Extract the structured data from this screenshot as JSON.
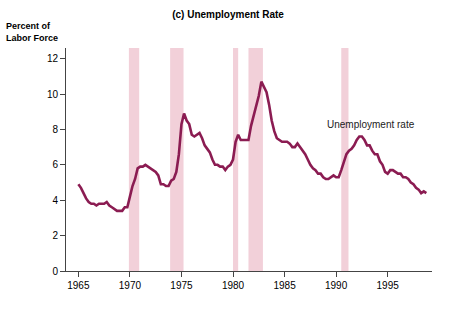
{
  "chart_data": {
    "type": "line",
    "title": "(c) Unemployment Rate",
    "y_label": "Percent of Labor Force",
    "x": [
      1965.0,
      1965.25,
      1965.5,
      1965.75,
      1966.0,
      1966.25,
      1966.5,
      1966.75,
      1967.0,
      1967.25,
      1967.5,
      1967.75,
      1968.0,
      1968.25,
      1968.5,
      1968.75,
      1969.0,
      1969.25,
      1969.5,
      1969.75,
      1970.0,
      1970.25,
      1970.5,
      1970.75,
      1971.0,
      1971.25,
      1971.5,
      1971.75,
      1972.0,
      1972.25,
      1972.5,
      1972.75,
      1973.0,
      1973.25,
      1973.5,
      1973.75,
      1974.0,
      1974.25,
      1974.5,
      1974.75,
      1975.0,
      1975.25,
      1975.5,
      1975.75,
      1976.0,
      1976.25,
      1976.5,
      1976.75,
      1977.0,
      1977.25,
      1977.5,
      1977.75,
      1978.0,
      1978.25,
      1978.5,
      1978.75,
      1979.0,
      1979.25,
      1979.5,
      1979.75,
      1980.0,
      1980.25,
      1980.5,
      1980.75,
      1981.0,
      1981.25,
      1981.5,
      1981.75,
      1982.0,
      1982.25,
      1982.5,
      1982.75,
      1983.0,
      1983.25,
      1983.5,
      1983.75,
      1984.0,
      1984.25,
      1984.5,
      1984.75,
      1985.0,
      1985.25,
      1985.5,
      1985.75,
      1986.0,
      1986.25,
      1986.5,
      1986.75,
      1987.0,
      1987.25,
      1987.5,
      1987.75,
      1988.0,
      1988.25,
      1988.5,
      1988.75,
      1989.0,
      1989.25,
      1989.5,
      1989.75,
      1990.0,
      1990.25,
      1990.5,
      1990.75,
      1991.0,
      1991.25,
      1991.5,
      1991.75,
      1992.0,
      1992.25,
      1992.5,
      1992.75,
      1993.0,
      1993.25,
      1993.5,
      1993.75,
      1994.0,
      1994.25,
      1994.5,
      1994.75,
      1995.0,
      1995.25,
      1995.5,
      1995.75,
      1996.0,
      1996.25,
      1996.5,
      1996.75,
      1997.0,
      1997.25,
      1997.5,
      1997.75,
      1998.0,
      1998.25,
      1998.5,
      1998.75
    ],
    "series": [
      {
        "name": "Unemployment rate",
        "color": "#8b1c52",
        "values": [
          4.9,
          4.7,
          4.4,
          4.1,
          3.9,
          3.8,
          3.8,
          3.7,
          3.8,
          3.8,
          3.8,
          3.9,
          3.7,
          3.6,
          3.5,
          3.4,
          3.4,
          3.4,
          3.6,
          3.6,
          4.2,
          4.8,
          5.2,
          5.8,
          5.9,
          5.9,
          6.0,
          5.9,
          5.8,
          5.7,
          5.6,
          5.4,
          4.9,
          4.9,
          4.8,
          4.8,
          5.1,
          5.2,
          5.6,
          6.6,
          8.3,
          8.9,
          8.5,
          8.3,
          7.7,
          7.6,
          7.7,
          7.8,
          7.5,
          7.1,
          6.9,
          6.7,
          6.3,
          6.0,
          6.0,
          5.9,
          5.9,
          5.7,
          5.9,
          6.0,
          6.3,
          7.3,
          7.7,
          7.4,
          7.4,
          7.4,
          7.4,
          8.2,
          8.8,
          9.4,
          9.9,
          10.7,
          10.4,
          10.1,
          9.4,
          8.5,
          7.9,
          7.5,
          7.4,
          7.3,
          7.3,
          7.3,
          7.2,
          7.0,
          7.0,
          7.2,
          7.0,
          6.8,
          6.6,
          6.3,
          6.0,
          5.8,
          5.7,
          5.5,
          5.5,
          5.3,
          5.2,
          5.2,
          5.3,
          5.4,
          5.3,
          5.3,
          5.7,
          6.1,
          6.6,
          6.8,
          6.9,
          7.1,
          7.4,
          7.6,
          7.6,
          7.4,
          7.1,
          7.1,
          6.8,
          6.6,
          6.6,
          6.2,
          6.0,
          5.6,
          5.5,
          5.7,
          5.7,
          5.6,
          5.5,
          5.5,
          5.3,
          5.3,
          5.2,
          5.0,
          4.9,
          4.7,
          4.6,
          4.4,
          4.5,
          4.4
        ]
      }
    ],
    "recessions": [
      [
        1969.9,
        1970.9
      ],
      [
        1973.9,
        1975.2
      ],
      [
        1980.0,
        1980.5
      ],
      [
        1981.5,
        1982.9
      ],
      [
        1990.5,
        1991.2
      ]
    ],
    "recession_color": "#f2d0d9",
    "annotations": [
      {
        "text": "Unemployment rate",
        "x": 1993.4,
        "y": 8.3
      }
    ],
    "xlim": [
      1963.8,
      1999.3
    ],
    "xticks": [
      1965,
      1970,
      1975,
      1980,
      1985,
      1990,
      1995
    ],
    "ylim": [
      0,
      12.6
    ],
    "yticks": [
      0,
      2,
      4,
      6,
      8,
      10,
      12
    ],
    "grid": false
  }
}
